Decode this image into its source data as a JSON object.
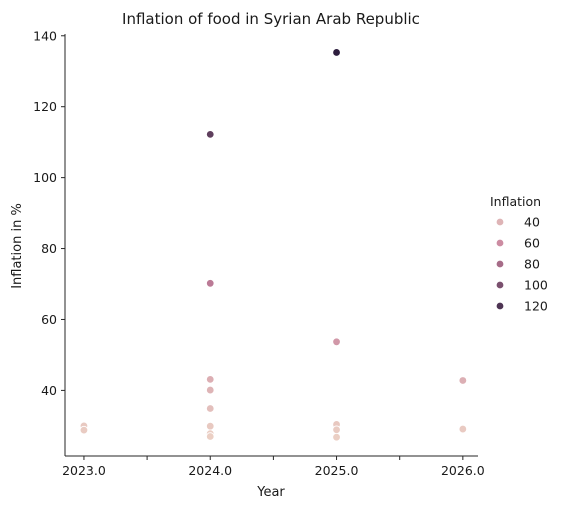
{
  "chart_data": {
    "type": "scatter",
    "title": "Inflation of food in Syrian Arab Republic",
    "xlabel": "Year",
    "ylabel": "Inflation in %",
    "x_ticks": [
      {
        "value": 2023.0,
        "label": "2023.0"
      },
      {
        "value": 2023.5,
        "label": ""
      },
      {
        "value": 2024.0,
        "label": "2024.0"
      },
      {
        "value": 2024.5,
        "label": ""
      },
      {
        "value": 2025.0,
        "label": "2025.0"
      },
      {
        "value": 2025.5,
        "label": ""
      },
      {
        "value": 2026.0,
        "label": "2026.0"
      }
    ],
    "y_ticks": [
      {
        "value": 40,
        "label": "40"
      },
      {
        "value": 60,
        "label": "60"
      },
      {
        "value": 80,
        "label": "80"
      },
      {
        "value": 100,
        "label": "100"
      },
      {
        "value": 120,
        "label": "120"
      },
      {
        "value": 140,
        "label": "140"
      }
    ],
    "xlim": [
      2022.85,
      2026.12
    ],
    "ylim": [
      21.5,
      140.5
    ],
    "grid": false,
    "hue": {
      "range": [
        26.8,
        135.3
      ],
      "color_low": "#ebcfc4",
      "color_high": "#2d1e3e"
    },
    "legend": {
      "title": "Inflation",
      "position": "right",
      "entries": [
        {
          "label": "40",
          "value": 40
        },
        {
          "label": "60",
          "value": 60
        },
        {
          "label": "80",
          "value": 80
        },
        {
          "label": "100",
          "value": 100
        },
        {
          "label": "120",
          "value": 120
        }
      ]
    },
    "points": [
      {
        "x": 2023.0,
        "y": 30.0
      },
      {
        "x": 2023.0,
        "y": 28.8
      },
      {
        "x": 2024.0,
        "y": 112.2
      },
      {
        "x": 2024.0,
        "y": 70.2
      },
      {
        "x": 2024.0,
        "y": 43.1
      },
      {
        "x": 2024.0,
        "y": 40.1
      },
      {
        "x": 2024.0,
        "y": 34.9
      },
      {
        "x": 2024.0,
        "y": 29.9
      },
      {
        "x": 2024.0,
        "y": 27.8
      },
      {
        "x": 2024.0,
        "y": 27.0
      },
      {
        "x": 2025.0,
        "y": 135.3
      },
      {
        "x": 2025.0,
        "y": 53.7
      },
      {
        "x": 2025.0,
        "y": 30.4
      },
      {
        "x": 2025.0,
        "y": 28.9
      },
      {
        "x": 2025.0,
        "y": 26.8
      },
      {
        "x": 2026.0,
        "y": 42.8
      },
      {
        "x": 2026.0,
        "y": 29.1
      }
    ]
  }
}
